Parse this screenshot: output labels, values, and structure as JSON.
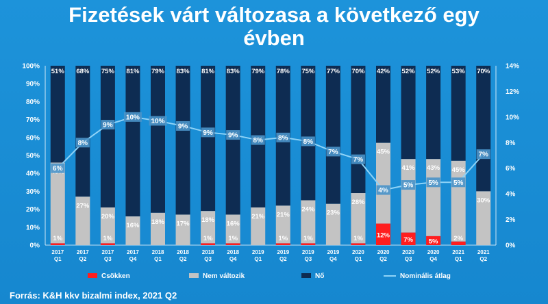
{
  "title_line1": "Fizetések várt változasa a következő egy",
  "title_line2": "évben",
  "source": "Forrás: K&H kkv bizalmi index, 2021 Q2",
  "colors": {
    "csokken": "#ff1e1e",
    "nem_valtozik": "#c3c3c3",
    "no": "#0e2c52",
    "line": "#8fd3f7",
    "label_box": "#4a93c9"
  },
  "chart_data": {
    "type": "bar",
    "stacked": true,
    "percent": true,
    "categories": [
      [
        "2017",
        "Q1"
      ],
      [
        "2017",
        "Q2"
      ],
      [
        "2017",
        "Q3"
      ],
      [
        "2017",
        "Q4"
      ],
      [
        "2018",
        "Q1"
      ],
      [
        "2018",
        "Q2"
      ],
      [
        "2018",
        "Q3"
      ],
      [
        "2018",
        "Q4"
      ],
      [
        "2019",
        "Q1"
      ],
      [
        "2019",
        "Q2"
      ],
      [
        "2019",
        "Q3"
      ],
      [
        "2019",
        "Q4"
      ],
      [
        "2020",
        "Q1"
      ],
      [
        "2020",
        "Q2"
      ],
      [
        "2020",
        "Q3"
      ],
      [
        "2020",
        "Q4"
      ],
      [
        "2021",
        "Q1"
      ],
      [
        "2021",
        "Q2"
      ]
    ],
    "series": [
      {
        "name": "Csökken",
        "values": [
          1,
          0,
          1,
          0,
          0,
          0,
          1,
          1,
          0,
          1,
          1,
          0,
          1,
          12,
          7,
          5,
          2,
          0
        ],
        "labels": [
          "1%",
          "",
          "1%",
          "",
          "",
          "",
          "1%",
          "1%",
          "",
          "1%",
          "1%",
          "",
          "1%",
          "12%",
          "7%",
          "5%",
          "2%",
          ""
        ]
      },
      {
        "name": "Nem változik",
        "values": [
          45,
          27,
          20,
          16,
          18,
          17,
          18,
          16,
          21,
          21,
          24,
          23,
          28,
          45,
          41,
          43,
          45,
          30
        ],
        "labels": [
          "45%",
          "27%",
          "20%",
          "16%",
          "18%",
          "17%",
          "18%",
          "16%",
          "21%",
          "21%",
          "24%",
          "23%",
          "28%",
          "45%",
          "41%",
          "43%",
          "45%",
          "30%"
        ]
      },
      {
        "name": "Nő",
        "values": [
          51,
          68,
          75,
          81,
          79,
          83,
          81,
          83,
          79,
          78,
          75,
          77,
          70,
          42,
          52,
          52,
          53,
          70
        ],
        "labels": [
          "51%",
          "68%",
          "75%",
          "81%",
          "79%",
          "83%",
          "81%",
          "83%",
          "79%",
          "78%",
          "75%",
          "77%",
          "70%",
          "42%",
          "52%",
          "52%",
          "53%",
          "70%"
        ]
      }
    ],
    "line": {
      "name": "Nominális átlag",
      "axis": "right",
      "values": [
        6,
        8,
        9.4,
        10,
        9.7,
        9.3,
        8.8,
        8.6,
        8.2,
        8.4,
        8.1,
        7.3,
        6.7,
        4.3,
        4.7,
        4.9,
        4.9,
        7.1
      ],
      "labels": [
        "6%",
        "8%",
        "9%",
        "10%",
        "10%",
        "9%",
        "9%",
        "9%",
        "8%",
        "8%",
        "8%",
        "7%",
        "7%",
        "4%",
        "5%",
        "5%",
        "5%",
        "7%"
      ]
    },
    "y_left": {
      "min": 0,
      "max": 100,
      "ticks": [
        "0%",
        "10%",
        "20%",
        "30%",
        "40%",
        "50%",
        "60%",
        "70%",
        "80%",
        "90%",
        "100%"
      ]
    },
    "y_right": {
      "min": 0,
      "max": 14,
      "ticks": [
        "0%",
        "2%",
        "4%",
        "6%",
        "8%",
        "10%",
        "12%",
        "14%"
      ]
    },
    "legend": [
      {
        "name": "Csökken",
        "kind": "bar"
      },
      {
        "name": "Nem változik",
        "kind": "bar"
      },
      {
        "name": "Nő",
        "kind": "bar"
      },
      {
        "name": "Nominális átlag",
        "kind": "line"
      }
    ],
    "legend_position": "bottom",
    "grid": false
  }
}
